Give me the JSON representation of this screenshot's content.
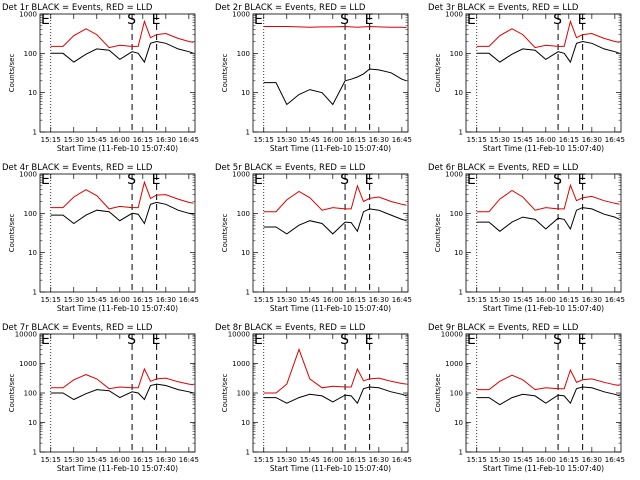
{
  "window": {
    "background": "#ffffff"
  },
  "colors": {
    "events": "#000000",
    "lld": "#e00000",
    "axes": "#000000"
  },
  "chart_data": [
    {
      "type": "line",
      "title": "Det 1r BLACK = Events, RED = LLD",
      "xlabel": "Start Time (11-Feb-10 15:07:40)",
      "ylabel": "Counts/sec",
      "x_ticks": [
        "15:15",
        "15:30",
        "15:45",
        "16:00",
        "16:15",
        "16:30",
        "16:45"
      ],
      "y_ticks": [
        "1",
        "10",
        "100",
        "1000"
      ],
      "ylim": [
        1,
        1000
      ],
      "log_y": true,
      "x_minutes": [
        7,
        15,
        22,
        30,
        37,
        45,
        52,
        60,
        64,
        68,
        72,
        76,
        82,
        90,
        97,
        100
      ],
      "markers": [
        {
          "label": "E",
          "x": 7
        },
        {
          "label": "S",
          "x": 60
        },
        {
          "label": "E",
          "x": 76
        }
      ],
      "series": [
        {
          "name": "Events",
          "values": [
            100,
            100,
            60,
            95,
            130,
            120,
            70,
            110,
            100,
            60,
            180,
            200,
            180,
            130,
            110,
            100
          ]
        },
        {
          "name": "LLD",
          "values": [
            150,
            150,
            280,
            420,
            300,
            140,
            160,
            150,
            150,
            650,
            250,
            300,
            320,
            240,
            200,
            190
          ]
        }
      ]
    },
    {
      "type": "line",
      "title": "Det 2r BLACK = Events, RED = LLD",
      "xlabel": "Start Time (11-Feb-10 15:07:40)",
      "ylabel": "Counts/sec",
      "x_ticks": [
        "15:15",
        "15:30",
        "15:45",
        "16:00",
        "16:15",
        "16:30",
        "16:45"
      ],
      "y_ticks": [
        "1",
        "10",
        "100",
        "1000"
      ],
      "ylim": [
        1,
        1000
      ],
      "log_y": true,
      "x_minutes": [
        7,
        15,
        22,
        30,
        37,
        45,
        52,
        60,
        64,
        68,
        72,
        76,
        82,
        90,
        97,
        100
      ],
      "markers": [
        {
          "label": "E",
          "x": 7
        },
        {
          "label": "S",
          "x": 60
        },
        {
          "label": "E",
          "x": 76
        }
      ],
      "series": [
        {
          "name": "Events",
          "values": [
            18,
            18,
            5,
            9,
            12,
            10,
            5,
            20,
            22,
            25,
            30,
            40,
            38,
            32,
            22,
            20
          ]
        },
        {
          "name": "LLD",
          "values": [
            480,
            480,
            480,
            470,
            460,
            470,
            470,
            480,
            470,
            460,
            470,
            480,
            470,
            460,
            460,
            450
          ]
        }
      ]
    },
    {
      "type": "line",
      "title": "Det 3r BLACK = Events, RED = LLD",
      "xlabel": "Start Time (11-Feb-10 15:07:40)",
      "ylabel": "Counts/sec",
      "x_ticks": [
        "15:15",
        "15:30",
        "15:45",
        "16:00",
        "16:15",
        "16:30",
        "16:45"
      ],
      "y_ticks": [
        "1",
        "10",
        "100",
        "1000"
      ],
      "ylim": [
        1,
        1000
      ],
      "log_y": true,
      "x_minutes": [
        7,
        15,
        22,
        30,
        37,
        45,
        52,
        60,
        64,
        68,
        72,
        76,
        82,
        90,
        97,
        100
      ],
      "markers": [
        {
          "label": "E",
          "x": 7
        },
        {
          "label": "S",
          "x": 60
        },
        {
          "label": "E",
          "x": 76
        }
      ],
      "series": [
        {
          "name": "Events",
          "values": [
            100,
            100,
            60,
            95,
            130,
            120,
            70,
            110,
            100,
            60,
            180,
            200,
            180,
            130,
            110,
            100
          ]
        },
        {
          "name": "LLD",
          "values": [
            150,
            150,
            280,
            420,
            300,
            140,
            160,
            150,
            150,
            650,
            250,
            300,
            320,
            240,
            200,
            190
          ]
        }
      ]
    },
    {
      "type": "line",
      "title": "Det 4r BLACK = Events, RED = LLD",
      "xlabel": "Start Time (11-Feb-10 15:07:40)",
      "ylabel": "Counts/sec",
      "x_ticks": [
        "15:15",
        "15:30",
        "15:45",
        "16:00",
        "16:15",
        "16:30",
        "16:45"
      ],
      "y_ticks": [
        "1",
        "10",
        "100",
        "1000"
      ],
      "ylim": [
        1,
        1000
      ],
      "log_y": true,
      "x_minutes": [
        7,
        15,
        22,
        30,
        37,
        45,
        52,
        60,
        64,
        68,
        72,
        76,
        82,
        90,
        97,
        100
      ],
      "markers": [
        {
          "label": "E",
          "x": 7
        },
        {
          "label": "S",
          "x": 60
        },
        {
          "label": "E",
          "x": 76
        }
      ],
      "series": [
        {
          "name": "Events",
          "values": [
            90,
            90,
            55,
            90,
            120,
            110,
            65,
            100,
            95,
            55,
            170,
            190,
            170,
            120,
            100,
            95
          ]
        },
        {
          "name": "LLD",
          "values": [
            140,
            140,
            260,
            400,
            280,
            130,
            150,
            140,
            140,
            620,
            240,
            290,
            300,
            230,
            190,
            180
          ]
        }
      ]
    },
    {
      "type": "line",
      "title": "Det 5r BLACK = Events, RED = LLD",
      "xlabel": "Start Time (11-Feb-10 15:07:40)",
      "ylabel": "Counts/sec",
      "x_ticks": [
        "15:15",
        "15:30",
        "15:45",
        "16:00",
        "16:15",
        "16:30",
        "16:45"
      ],
      "y_ticks": [
        "1",
        "10",
        "100",
        "1000"
      ],
      "ylim": [
        1,
        1000
      ],
      "log_y": true,
      "x_minutes": [
        7,
        15,
        22,
        30,
        37,
        45,
        52,
        60,
        64,
        68,
        72,
        76,
        82,
        90,
        97,
        100
      ],
      "markers": [
        {
          "label": "E",
          "x": 7
        },
        {
          "label": "S",
          "x": 60
        },
        {
          "label": "E",
          "x": 76
        }
      ],
      "series": [
        {
          "name": "Events",
          "values": [
            45,
            45,
            30,
            50,
            65,
            55,
            30,
            60,
            58,
            35,
            110,
            130,
            120,
            90,
            70,
            65
          ]
        },
        {
          "name": "LLD",
          "values": [
            110,
            110,
            220,
            360,
            250,
            120,
            140,
            130,
            130,
            500,
            200,
            240,
            260,
            200,
            170,
            160
          ]
        }
      ]
    },
    {
      "type": "line",
      "title": "Det 6r BLACK = Events, RED = LLD",
      "xlabel": "Start Time (11-Feb-10 15:07:40)",
      "ylabel": "Counts/sec",
      "x_ticks": [
        "15:15",
        "15:30",
        "15:45",
        "16:00",
        "16:15",
        "16:30",
        "16:45"
      ],
      "y_ticks": [
        "1",
        "10",
        "100",
        "1000"
      ],
      "ylim": [
        1,
        1000
      ],
      "log_y": true,
      "x_minutes": [
        7,
        15,
        22,
        30,
        37,
        45,
        52,
        60,
        64,
        68,
        72,
        76,
        82,
        90,
        97,
        100
      ],
      "markers": [
        {
          "label": "E",
          "x": 7
        },
        {
          "label": "S",
          "x": 60
        },
        {
          "label": "E",
          "x": 76
        }
      ],
      "series": [
        {
          "name": "Events",
          "values": [
            60,
            60,
            35,
            60,
            80,
            70,
            40,
            75,
            70,
            40,
            120,
            140,
            130,
            95,
            80,
            70
          ]
        },
        {
          "name": "LLD",
          "values": [
            110,
            110,
            230,
            380,
            260,
            120,
            140,
            130,
            130,
            520,
            210,
            250,
            270,
            210,
            180,
            170
          ]
        }
      ]
    },
    {
      "type": "line",
      "title": "Det 7r BLACK = Events, RED = LLD",
      "xlabel": "Start Time (11-Feb-10 15:07:40)",
      "ylabel": "Counts/sec",
      "x_ticks": [
        "15:15",
        "15:30",
        "15:45",
        "16:00",
        "16:15",
        "16:30",
        "16:45"
      ],
      "y_ticks": [
        "1",
        "10",
        "100",
        "1000",
        "10000"
      ],
      "ylim": [
        1,
        10000
      ],
      "log_y": true,
      "x_minutes": [
        7,
        15,
        22,
        30,
        37,
        45,
        52,
        60,
        64,
        68,
        72,
        76,
        82,
        90,
        97,
        100
      ],
      "markers": [
        {
          "label": "E",
          "x": 7
        },
        {
          "label": "S",
          "x": 60
        },
        {
          "label": "E",
          "x": 76
        }
      ],
      "series": [
        {
          "name": "Events",
          "values": [
            100,
            100,
            60,
            95,
            130,
            120,
            70,
            110,
            100,
            60,
            180,
            200,
            180,
            130,
            110,
            100
          ]
        },
        {
          "name": "LLD",
          "values": [
            150,
            150,
            280,
            420,
            300,
            140,
            160,
            150,
            150,
            650,
            250,
            300,
            320,
            240,
            200,
            190
          ]
        }
      ]
    },
    {
      "type": "line",
      "title": "Det 8r BLACK = Events, RED = LLD",
      "xlabel": "Start Time (11-Feb-10 15:07:40)",
      "ylabel": "Counts/sec",
      "x_ticks": [
        "15:15",
        "15:30",
        "15:45",
        "16:00",
        "16:15",
        "16:30",
        "16:45"
      ],
      "y_ticks": [
        "1",
        "10",
        "100",
        "1000",
        "10000"
      ],
      "ylim": [
        1,
        10000
      ],
      "log_y": true,
      "x_minutes": [
        7,
        15,
        22,
        30,
        37,
        45,
        52,
        60,
        64,
        68,
        72,
        76,
        82,
        90,
        97,
        100
      ],
      "markers": [
        {
          "label": "E",
          "x": 7
        },
        {
          "label": "S",
          "x": 60
        },
        {
          "label": "E",
          "x": 76
        }
      ],
      "series": [
        {
          "name": "Events",
          "values": [
            70,
            70,
            45,
            70,
            90,
            80,
            50,
            85,
            80,
            45,
            140,
            160,
            150,
            110,
            90,
            80
          ]
        },
        {
          "name": "LLD",
          "values": [
            100,
            100,
            200,
            3000,
            300,
            150,
            170,
            160,
            160,
            650,
            260,
            300,
            320,
            250,
            210,
            200
          ]
        }
      ]
    },
    {
      "type": "line",
      "title": "Det 9r BLACK = Events, RED = LLD",
      "xlabel": "Start Time (11-Feb-10 15:07:40)",
      "ylabel": "Counts/sec",
      "x_ticks": [
        "15:15",
        "15:30",
        "15:45",
        "16:00",
        "16:15",
        "16:30",
        "16:45"
      ],
      "y_ticks": [
        "1",
        "10",
        "100",
        "1000",
        "10000"
      ],
      "ylim": [
        1,
        10000
      ],
      "log_y": true,
      "x_minutes": [
        7,
        15,
        22,
        30,
        37,
        45,
        52,
        60,
        64,
        68,
        72,
        76,
        82,
        90,
        97,
        100
      ],
      "markers": [
        {
          "label": "E",
          "x": 7
        },
        {
          "label": "S",
          "x": 60
        },
        {
          "label": "E",
          "x": 76
        }
      ],
      "series": [
        {
          "name": "Events",
          "values": [
            70,
            70,
            40,
            70,
            90,
            80,
            45,
            85,
            80,
            45,
            140,
            160,
            150,
            110,
            90,
            80
          ]
        },
        {
          "name": "LLD",
          "values": [
            130,
            130,
            250,
            400,
            280,
            130,
            150,
            140,
            140,
            600,
            230,
            280,
            300,
            230,
            190,
            180
          ]
        }
      ]
    }
  ]
}
